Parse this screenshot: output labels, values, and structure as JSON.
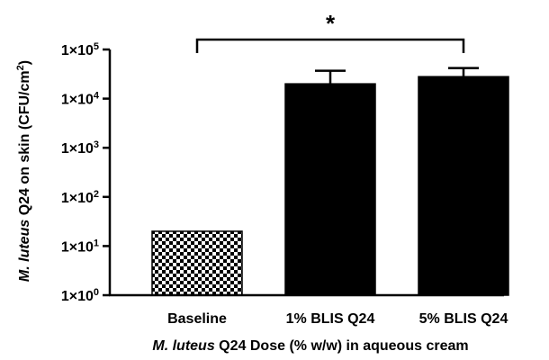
{
  "chart_data": {
    "type": "bar",
    "scale": "log10",
    "ylim": [
      1,
      100000
    ],
    "y_ticks": [
      {
        "value": 1,
        "base": "1×10",
        "exp": "0"
      },
      {
        "value": 10,
        "base": "1×10",
        "exp": "1"
      },
      {
        "value": 100,
        "base": "1×10",
        "exp": "2"
      },
      {
        "value": 1000,
        "base": "1×10",
        "exp": "3"
      },
      {
        "value": 10000,
        "base": "1×10",
        "exp": "4"
      },
      {
        "value": 100000,
        "base": "1×10",
        "exp": "5"
      }
    ],
    "categories": [
      "Baseline",
      "1% BLIS Q24",
      "5% BLIS Q24"
    ],
    "values": [
      20,
      20000,
      28000
    ],
    "error_upper": [
      null,
      37000,
      42000
    ],
    "patterns": [
      "checkerboard",
      "solid",
      "solid"
    ],
    "bar_color": "#000000",
    "ylabel": {
      "italic": "M. luteus",
      "rest": " Q24 on skin (CFU/cm",
      "sup": "2",
      "close": ")"
    },
    "xlabel": {
      "italic": "M. luteus",
      "rest": " Q24 Dose (% w/w) in aqueous cream"
    },
    "significance": {
      "label": "*",
      "from_category": 0,
      "to_category": 2
    },
    "grid": false,
    "legend": "none"
  }
}
